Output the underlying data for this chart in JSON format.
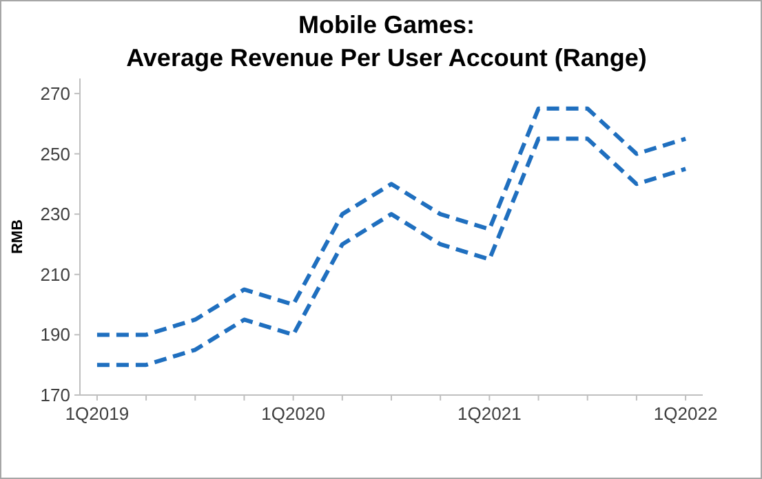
{
  "chart_data": {
    "type": "line",
    "title": "Mobile Games:\nAverage Revenue Per User Account (Range)",
    "ylabel": "RMB",
    "categories": [
      "1Q2019",
      null,
      null,
      null,
      "1Q2020",
      null,
      null,
      null,
      "1Q2021",
      null,
      null,
      null,
      "1Q2022"
    ],
    "series": [
      {
        "color": "#1f6fbf",
        "values": [
          190,
          190,
          195,
          205,
          200,
          230,
          240,
          230,
          225,
          265,
          265,
          250,
          255
        ]
      },
      {
        "color": "#1f6fbf",
        "values": [
          180,
          180,
          185,
          195,
          190,
          220,
          230,
          220,
          215,
          255,
          255,
          240,
          245
        ]
      }
    ],
    "ylim": [
      170,
      275
    ],
    "yticks": [
      170,
      190,
      210,
      230,
      250,
      270
    ],
    "grid": false,
    "line_style": "dashed",
    "marker": "none"
  }
}
